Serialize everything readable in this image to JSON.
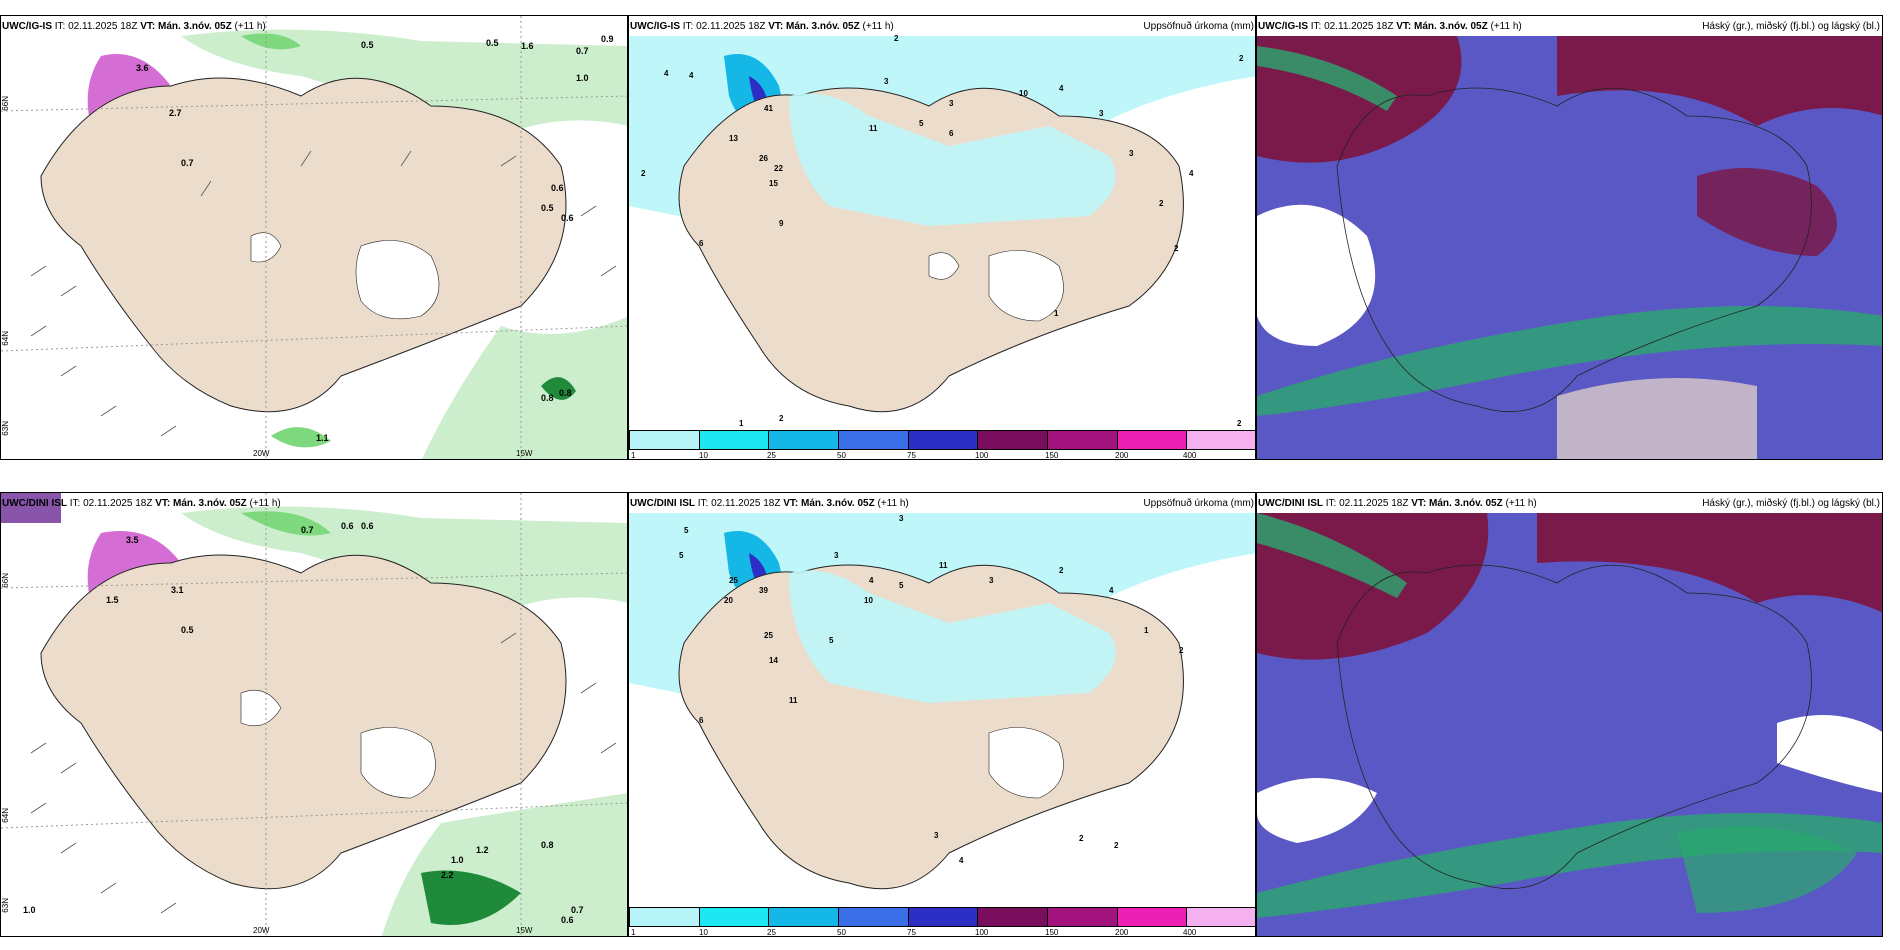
{
  "rows": [
    {
      "model": "UWC/IG-IS",
      "it_label": "IT: 02.11.2025 18Z",
      "vt_label": "VT: Mán. 3.nóv. 05Z",
      "lead": "(+11 h)",
      "wind_values": [
        "0.5",
        "0.5",
        "1.6",
        "0.7",
        "0.9",
        "1.0",
        "3.6",
        "2.7",
        "0.6",
        "0.5",
        "0.7",
        "0.6",
        "0.8",
        "0.8",
        "1.1"
      ],
      "precip_values": [
        "2",
        "4",
        "4",
        "3",
        "2",
        "2",
        "3",
        "11",
        "5",
        "6",
        "10",
        "4",
        "3",
        "3",
        "2",
        "4",
        "13",
        "41",
        "26",
        "22",
        "15",
        "9",
        "6",
        "1",
        "2",
        "2",
        "1",
        "2"
      ],
      "lat_labels": [
        "66N",
        "64N",
        "63N"
      ],
      "lon_labels": [
        "20W",
        "15W"
      ]
    },
    {
      "model": "UWC/DINI ISL",
      "it_label": "IT: 02.11.2025 18Z",
      "vt_label": "VT: Mán. 3.nóv. 05Z",
      "lead": "(+11 h)",
      "wind_values": [
        "0.7",
        "0.6",
        "0.6",
        "3.5",
        "1.5",
        "3.1",
        "0.5",
        "1.2",
        "2.2",
        "1.0",
        "0.8",
        "0.7",
        "1.0",
        "0.6"
      ],
      "precip_values": [
        "3",
        "5",
        "5",
        "3",
        "4",
        "10",
        "5",
        "11",
        "25",
        "20",
        "39",
        "25",
        "14",
        "5",
        "11",
        "6",
        "3",
        "2",
        "4",
        "1",
        "2",
        "3",
        "4",
        "2",
        "2"
      ],
      "lat_labels": [
        "66N",
        "64N",
        "63N"
      ],
      "lon_labels": [
        "20W",
        "15W"
      ]
    }
  ],
  "precip_title": "Uppsöfnuð úrkoma (mm)",
  "cloud_title": "Háský (gr.), miðský (fj.bl.) og lágský (bl.)",
  "precip_legend": {
    "labels": [
      "1",
      "10",
      "25",
      "50",
      "75",
      "100",
      "150",
      "200",
      "400"
    ],
    "colors": [
      "#b7f4f7",
      "#1de8f2",
      "#14b7e6",
      "#3a6fe8",
      "#2d2fc4",
      "#7a0d5c",
      "#a3137e",
      "#ec20b4",
      "#f5b0ef"
    ]
  },
  "colors": {
    "land": "#ecdccb",
    "wind_light": "#cdeecd",
    "wind_mid": "#7ed87e",
    "wind_dark": "#1e8a3a",
    "gust_purple": "#cc55cc",
    "precip_area": "#bff6f9",
    "high_cloud": "#7a1a4a",
    "mid_cloud": "#5a58c4",
    "low_cloud_green": "#2aa86e"
  }
}
